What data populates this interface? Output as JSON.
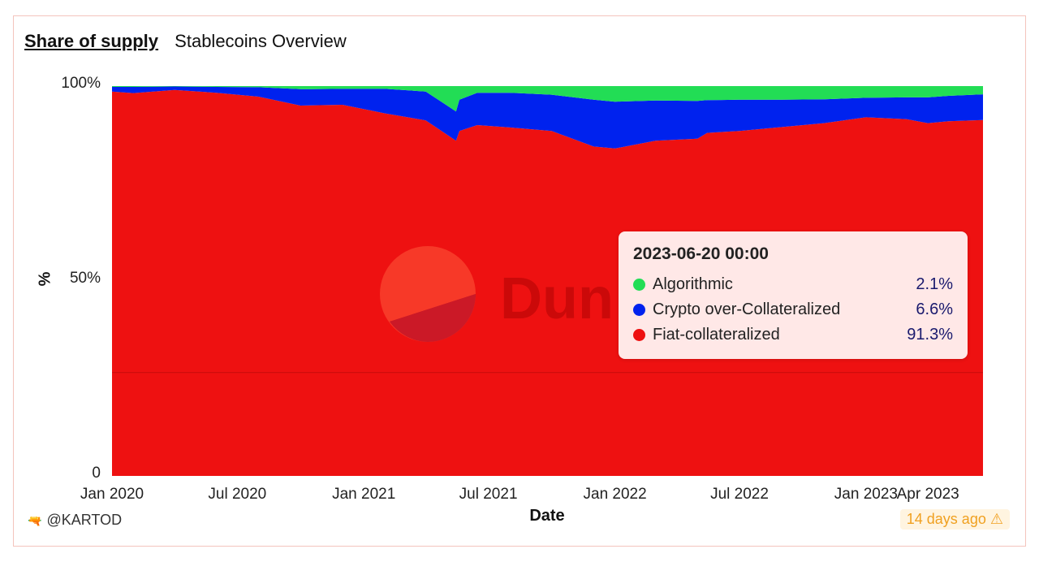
{
  "header": {
    "title": "Share of supply",
    "subtitle": "Stablecoins Overview"
  },
  "footer": {
    "author": "@KARTOD",
    "author_icon": "emoji-icon",
    "staleness": "14 days ago",
    "staleness_icon": "warning-icon"
  },
  "watermark": {
    "text": "Dun"
  },
  "tooltip": {
    "date": "2023-06-20 00:00",
    "rows": [
      {
        "name": "Algorithmic",
        "value": "2.1%",
        "color": "#22dd55"
      },
      {
        "name": "Crypto over-Collateralized",
        "value": "6.6%",
        "color": "#0022ee"
      },
      {
        "name": "Fiat-collateralized",
        "value": "91.3%",
        "color": "#ee1111"
      }
    ]
  },
  "chart_data": {
    "type": "area",
    "stacked": true,
    "normalized": true,
    "xlabel": "Date",
    "ylabel": "%",
    "ylim": [
      0,
      100
    ],
    "yticks": [
      "0",
      "50%",
      "100%"
    ],
    "xticks": [
      "Jan 2020",
      "Jul 2020",
      "Jan 2021",
      "Jul 2021",
      "Jan 2022",
      "Jul 2022",
      "Jan 2023",
      "Apr 2023"
    ],
    "xtick_dates": [
      "2020-01-01",
      "2020-07-01",
      "2021-01-01",
      "2021-07-01",
      "2022-01-01",
      "2022-07-01",
      "2023-01-01",
      "2023-04-01"
    ],
    "xlim": [
      "2020-01-01",
      "2023-06-20"
    ],
    "x": [
      "2020-01-01",
      "2020-02-01",
      "2020-04-01",
      "2020-06-01",
      "2020-08-01",
      "2020-10-01",
      "2020-12-01",
      "2021-02-01",
      "2021-04-01",
      "2021-05-15",
      "2021-05-20",
      "2021-06-15",
      "2021-08-01",
      "2021-10-01",
      "2021-12-01",
      "2022-01-01",
      "2022-03-01",
      "2022-05-01",
      "2022-05-15",
      "2022-07-01",
      "2022-09-01",
      "2022-11-01",
      "2023-01-01",
      "2023-03-01",
      "2023-04-01",
      "2023-05-01",
      "2023-06-20"
    ],
    "series": [
      {
        "name": "Fiat-collateralized",
        "color": "#ee1111",
        "values": [
          98.6,
          98.2,
          99.0,
          98.3,
          97.3,
          95.0,
          95.2,
          93.0,
          91.2,
          86.0,
          88.5,
          90.0,
          89.4,
          88.5,
          84.5,
          84.0,
          86.0,
          86.5,
          88.0,
          88.5,
          89.5,
          90.5,
          92.0,
          91.5,
          90.5,
          91.0,
          91.3
        ]
      },
      {
        "name": "Crypto over-Collateralized",
        "color": "#0022ee",
        "values": [
          1.2,
          1.6,
          0.9,
          1.5,
          2.4,
          4.2,
          4.1,
          6.3,
          7.4,
          7.5,
          8.0,
          8.3,
          8.9,
          9.3,
          12.0,
          12.0,
          10.3,
          9.7,
          8.4,
          8.0,
          7.0,
          6.1,
          5.0,
          5.6,
          6.6,
          6.5,
          6.6
        ]
      },
      {
        "name": "Algorithmic",
        "color": "#22dd55",
        "values": [
          0.2,
          0.2,
          0.1,
          0.2,
          0.3,
          0.8,
          0.7,
          0.7,
          1.4,
          6.5,
          3.5,
          1.7,
          1.7,
          2.2,
          3.5,
          4.0,
          3.7,
          3.8,
          3.6,
          3.5,
          3.5,
          3.4,
          3.0,
          2.9,
          2.9,
          2.5,
          2.1
        ]
      }
    ],
    "legend": "tooltip"
  }
}
